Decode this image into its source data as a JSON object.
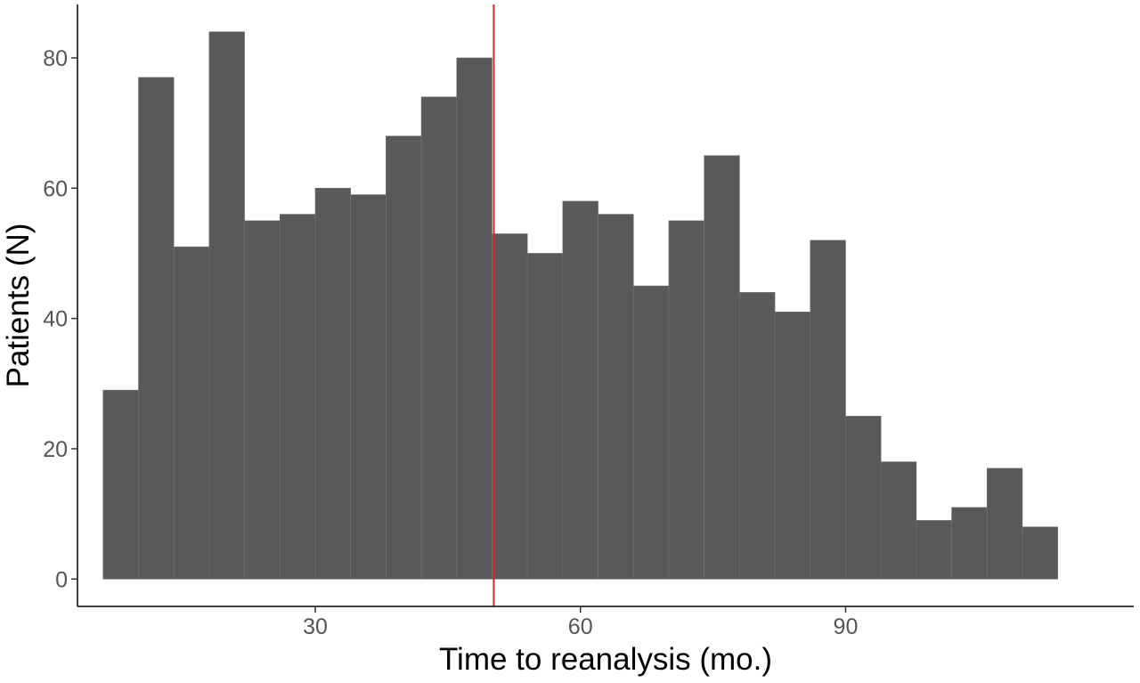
{
  "chart_data": {
    "type": "bar",
    "subtype": "histogram",
    "title": "",
    "xlabel": "Time to reanalysis (mo.)",
    "ylabel": "Patients (N)",
    "bin_width": 4,
    "bins": [
      {
        "start": 6,
        "end": 10,
        "count": 29
      },
      {
        "start": 10,
        "end": 14,
        "count": 77
      },
      {
        "start": 14,
        "end": 18,
        "count": 51
      },
      {
        "start": 18,
        "end": 22,
        "count": 84
      },
      {
        "start": 22,
        "end": 26,
        "count": 55
      },
      {
        "start": 26,
        "end": 30,
        "count": 56
      },
      {
        "start": 30,
        "end": 34,
        "count": 60
      },
      {
        "start": 34,
        "end": 38,
        "count": 59
      },
      {
        "start": 38,
        "end": 42,
        "count": 68
      },
      {
        "start": 42,
        "end": 46,
        "count": 74
      },
      {
        "start": 46,
        "end": 50,
        "count": 80
      },
      {
        "start": 50,
        "end": 54,
        "count": 53
      },
      {
        "start": 54,
        "end": 58,
        "count": 50
      },
      {
        "start": 58,
        "end": 62,
        "count": 58
      },
      {
        "start": 62,
        "end": 66,
        "count": 56
      },
      {
        "start": 66,
        "end": 70,
        "count": 45
      },
      {
        "start": 70,
        "end": 74,
        "count": 55
      },
      {
        "start": 74,
        "end": 78,
        "count": 65
      },
      {
        "start": 78,
        "end": 82,
        "count": 44
      },
      {
        "start": 82,
        "end": 86,
        "count": 41
      },
      {
        "start": 86,
        "end": 90,
        "count": 52
      },
      {
        "start": 90,
        "end": 94,
        "count": 25
      },
      {
        "start": 94,
        "end": 98,
        "count": 18
      },
      {
        "start": 98,
        "end": 102,
        "count": 9
      },
      {
        "start": 102,
        "end": 106,
        "count": 11
      },
      {
        "start": 106,
        "end": 110,
        "count": 17
      },
      {
        "start": 110,
        "end": 114,
        "count": 8
      }
    ],
    "reference_line": {
      "x": 50.2,
      "color": "#d62728"
    },
    "xlim": [
      3.1,
      122.6
    ],
    "ylim": [
      -4.2,
      88.2
    ],
    "x_ticks": [
      30,
      60,
      90
    ],
    "x_tick_labels": [
      "30",
      "60",
      "90"
    ],
    "y_ticks": [
      0,
      20,
      40,
      60,
      80
    ],
    "y_tick_labels": [
      "0",
      "20",
      "40",
      "60",
      "80"
    ],
    "grid": false,
    "bar_color": "#595959",
    "bar_outline_color": "#737373"
  }
}
